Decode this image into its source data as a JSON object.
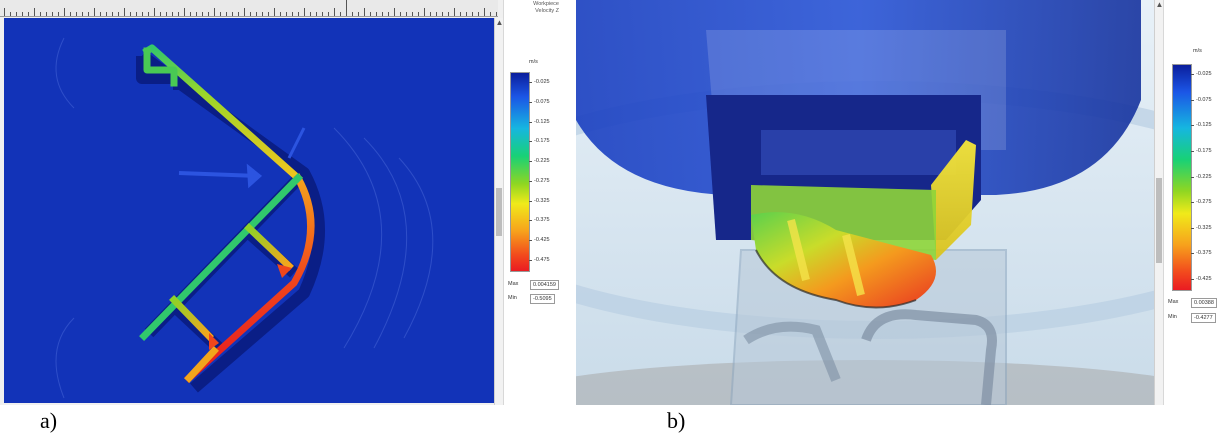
{
  "panel_a": {
    "label": "a)",
    "header_line1": "Workpiece",
    "header_line2": "Velocity Z",
    "legend": {
      "unit": "m/s",
      "ticks": [
        "-0.025",
        "-0.075",
        "-0.125",
        "-0.175",
        "-0.225",
        "-0.275",
        "-0.325",
        "-0.375",
        "-0.425",
        "-0.475"
      ],
      "max_label": "Max",
      "max_value": "0.004159",
      "min_label": "Min",
      "min_value": "-0.5095"
    }
  },
  "panel_b": {
    "label": "b)",
    "legend": {
      "unit": "m/s",
      "ticks": [
        "-0.025",
        "-0.075",
        "-0.125",
        "-0.175",
        "-0.225",
        "-0.275",
        "-0.325",
        "-0.375",
        "-0.425"
      ],
      "max_label": "Max",
      "max_value": "0.00388",
      "min_label": "Min",
      "min_value": "-0.4277"
    }
  },
  "colors": {
    "background_a": "#1233b8",
    "scale_top": "#0b1e9c",
    "scale_bottom": "#ea1b22"
  }
}
